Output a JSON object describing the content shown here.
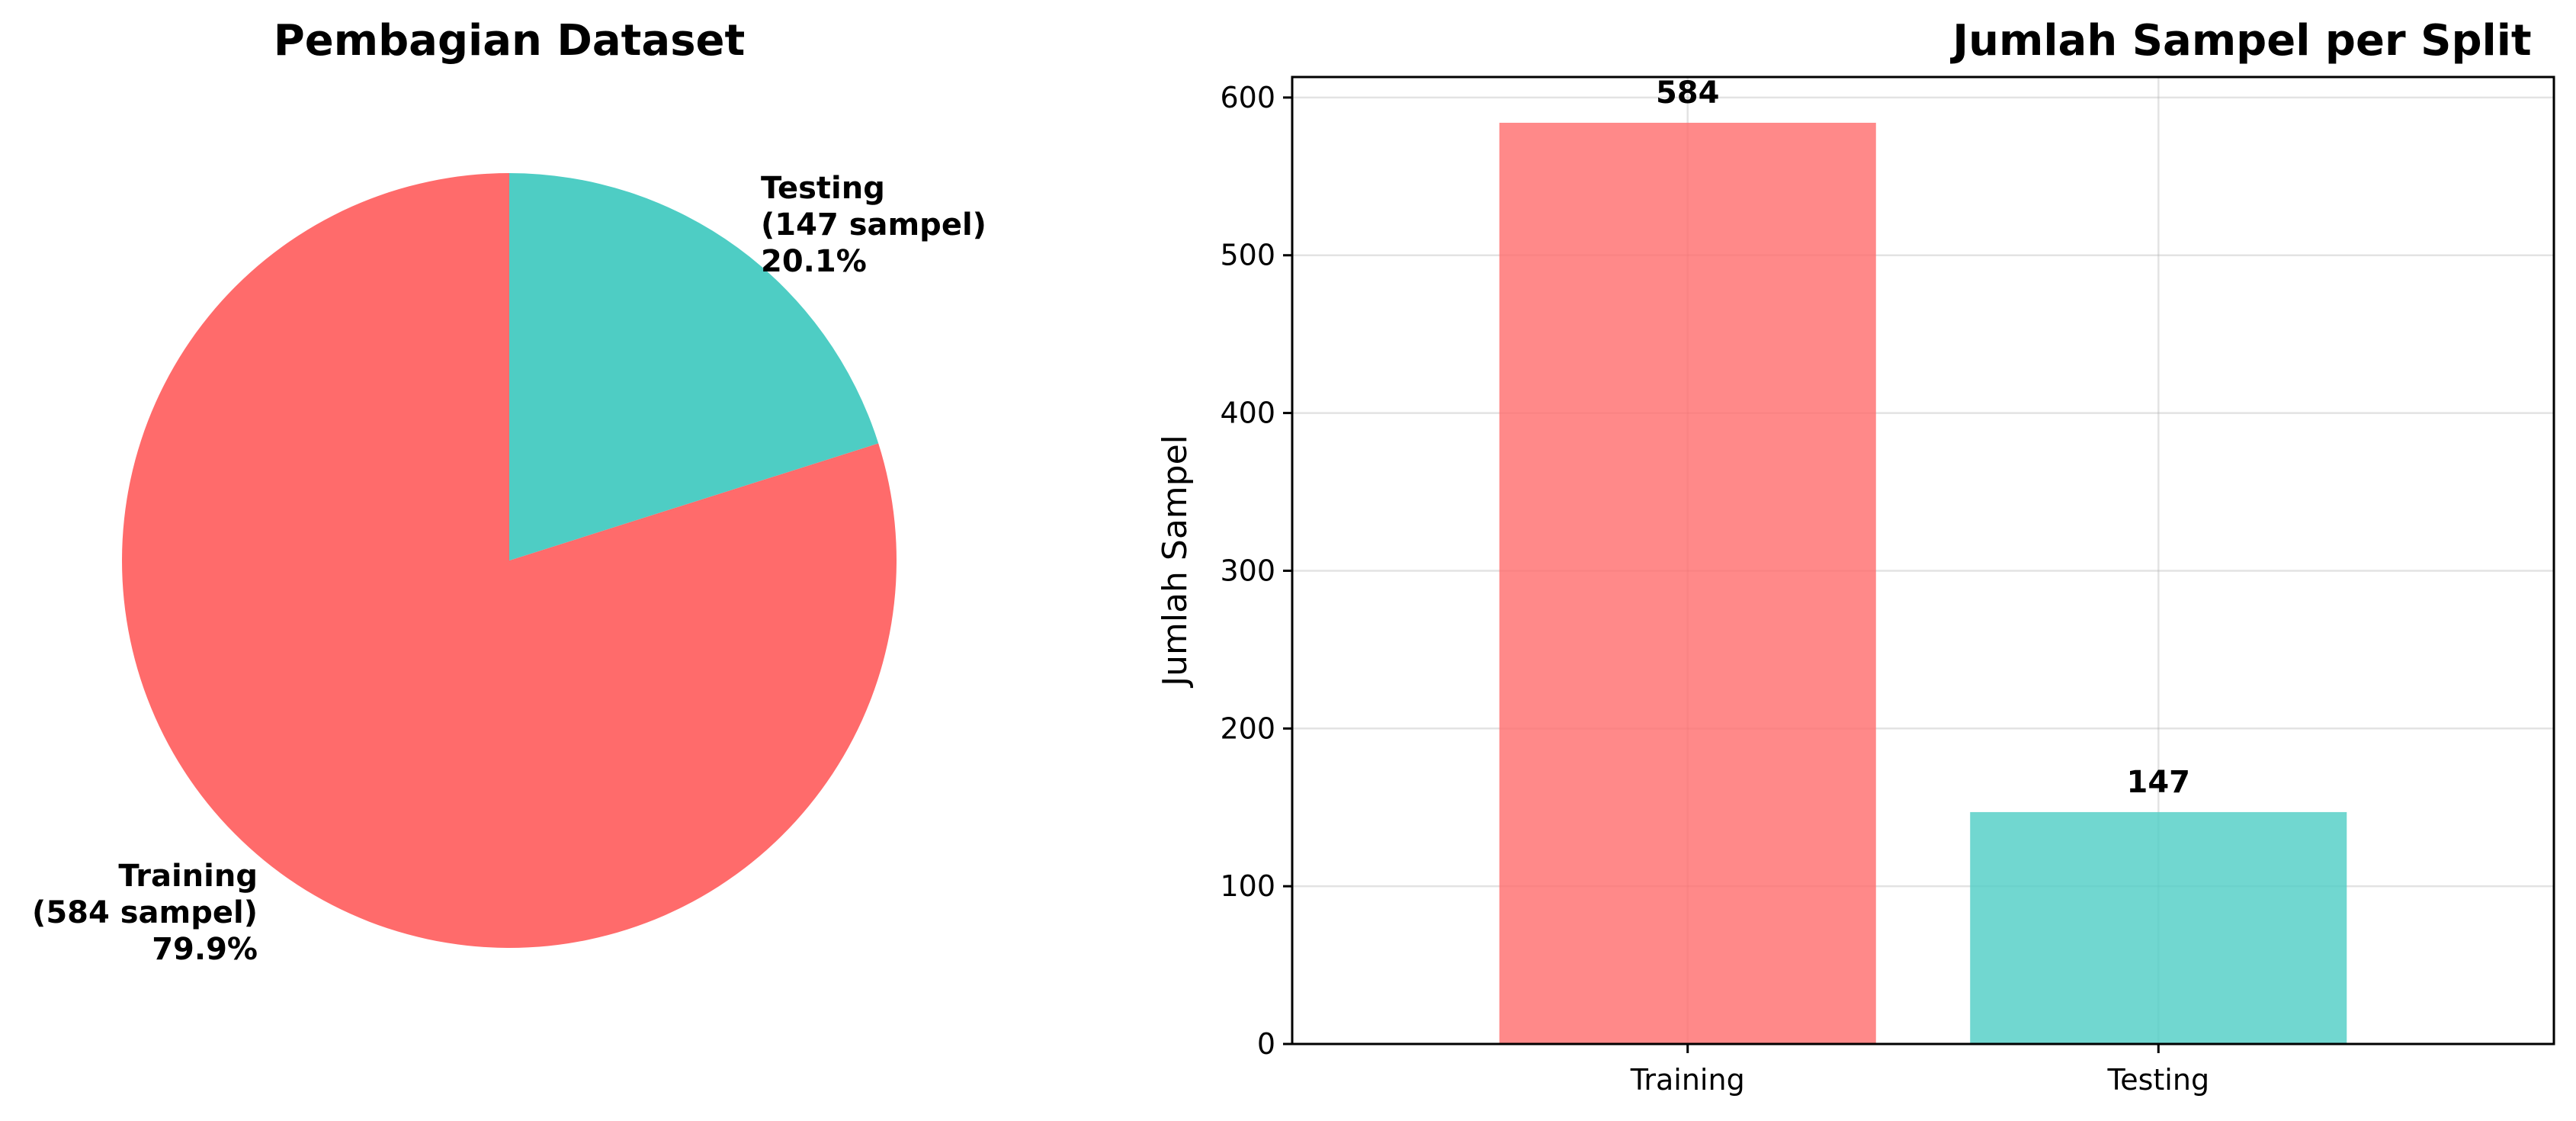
{
  "chart_data": [
    {
      "type": "pie",
      "title": "Pembagian Dataset",
      "slices": [
        {
          "category": "Training",
          "value": 584,
          "name_line": "Training",
          "count_line": "(584 sampel)",
          "pct_line": "79.9%",
          "color": "#ff6b6b"
        },
        {
          "category": "Testing",
          "value": 147,
          "name_line": "Testing",
          "count_line": "(147 sampel)",
          "pct_line": "20.1%",
          "color": "#4ecdc4"
        }
      ],
      "start_angle_deg": 90,
      "direction": "clockwise"
    },
    {
      "type": "bar",
      "title": "Jumlah Sampel per Split",
      "categories": [
        "Training",
        "Testing"
      ],
      "values": [
        584,
        147
      ],
      "value_labels": [
        "584",
        "147"
      ],
      "colors": [
        "#ff6b6b",
        "#4ecdc4"
      ],
      "bar_opacity": 0.8,
      "xlabel": "",
      "ylabel": "Jumlah Sampel",
      "ylim": [
        0,
        613
      ],
      "yticks": [
        0,
        100,
        200,
        300,
        400,
        500,
        600
      ],
      "grid": true
    }
  ]
}
